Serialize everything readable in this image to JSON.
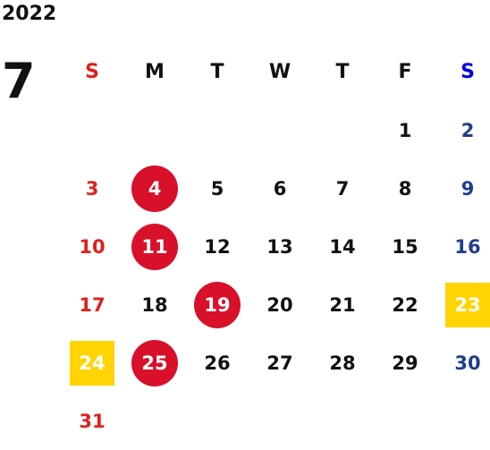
{
  "calendar": {
    "year": "2022",
    "month": "7",
    "weekdays": [
      "S",
      "M",
      "T",
      "W",
      "T",
      "F",
      "S"
    ],
    "weeks": [
      [
        "",
        "",
        "",
        "",
        "",
        "1",
        "2"
      ],
      [
        "3",
        "4",
        "5",
        "6",
        "7",
        "8",
        "9"
      ],
      [
        "10",
        "11",
        "12",
        "13",
        "14",
        "15",
        "16"
      ],
      [
        "17",
        "18",
        "19",
        "20",
        "21",
        "22",
        "23"
      ],
      [
        "24",
        "25",
        "26",
        "27",
        "28",
        "29",
        "30"
      ],
      [
        "31",
        "",
        "",
        "",
        "",
        "",
        ""
      ]
    ],
    "circled_days": [
      "4",
      "11",
      "19",
      "25"
    ],
    "highlighted_days": [
      "23",
      "24"
    ]
  },
  "colors": {
    "sunday": "#e0201c",
    "saturday": "#1e3f8a",
    "saturday_header": "#0000e0",
    "circle": "#d8102a",
    "highlight": "#ffd400",
    "text": "#111111"
  }
}
